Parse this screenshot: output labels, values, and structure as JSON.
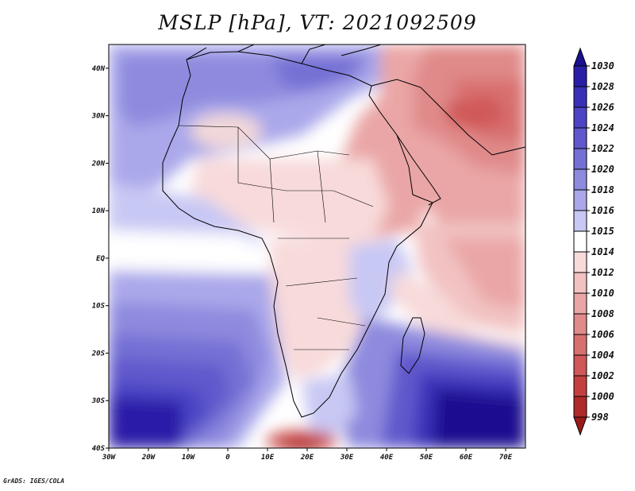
{
  "title": "MSLP [hPa], VT: 2021092509",
  "credit": "GrADS: IGES/COLA",
  "map": {
    "projection": "latlon",
    "lon_range": [
      -30,
      75
    ],
    "lat_range": [
      -40,
      45
    ],
    "x_ticks": [
      "30W",
      "20W",
      "10W",
      "0",
      "10E",
      "20E",
      "30E",
      "40E",
      "50E",
      "60E",
      "70E"
    ],
    "y_ticks": [
      "40N",
      "30N",
      "20N",
      "10N",
      "EQ",
      "10S",
      "20S",
      "30S",
      "40S"
    ]
  },
  "colorbar": {
    "unit": "hPa",
    "levels": [
      "1030",
      "1028",
      "1026",
      "1024",
      "1022",
      "1020",
      "1018",
      "1016",
      "1015",
      "1014",
      "1012",
      "1010",
      "1008",
      "1006",
      "1004",
      "1002",
      "1000",
      "998"
    ],
    "colors": [
      "#1a1090",
      "#2a1ea8",
      "#3a30b8",
      "#4c44c4",
      "#6058cc",
      "#7470d4",
      "#8e8ade",
      "#aaa8ea",
      "#c8c8f4",
      "#ffffff",
      "#f8dada",
      "#f2c2c2",
      "#eaa6a6",
      "#e08a8a",
      "#d87070",
      "#d05858",
      "#c44040",
      "#b02a2a",
      "#9a1a1a"
    ]
  }
}
